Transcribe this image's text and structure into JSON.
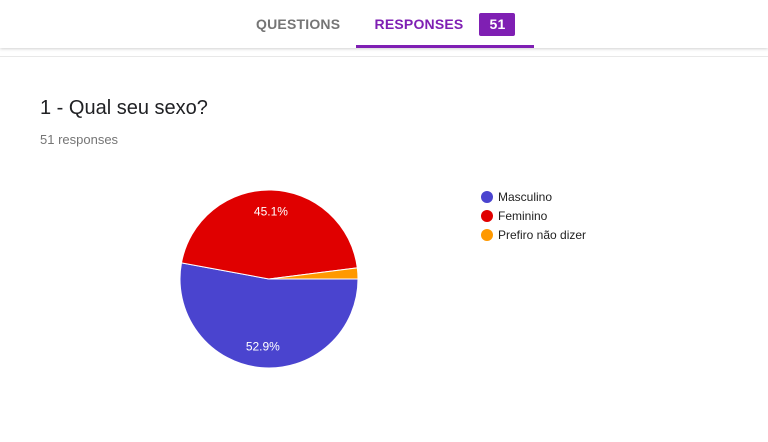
{
  "tabs": {
    "questions_label": "QUESTIONS",
    "responses_label": "RESPONSES",
    "responses_count": "51"
  },
  "question": {
    "title": "1 - Qual seu sexo?",
    "responses_text": "51 responses"
  },
  "colors": {
    "accent": "#7f1fb3",
    "masculino": "#4a44cf",
    "feminino": "#e00000",
    "prefiro": "#ff9900"
  },
  "chart_data": {
    "type": "pie",
    "categories": [
      "Masculino",
      "Feminino",
      "Prefiro não dizer"
    ],
    "values": [
      52.9,
      45.1,
      2.0
    ],
    "labels": [
      "52.9%",
      "45.1%",
      ""
    ],
    "colors": [
      "#4a44cf",
      "#e00000",
      "#ff9900"
    ],
    "legend_position": "right"
  }
}
